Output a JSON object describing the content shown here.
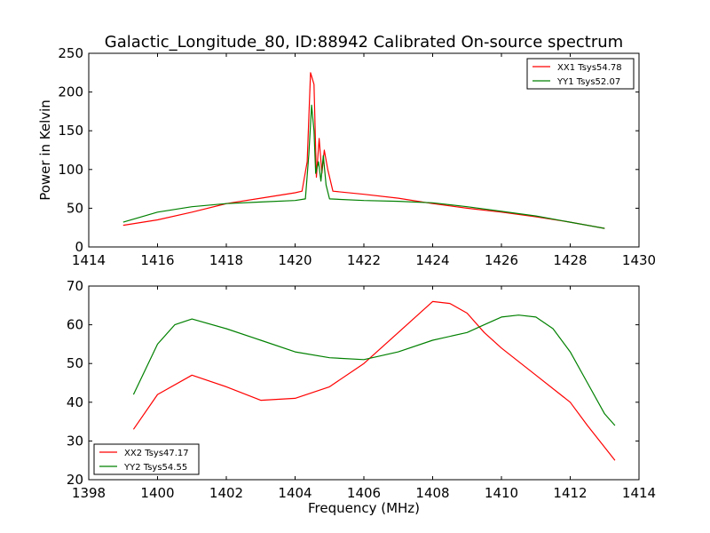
{
  "title": "Galactic_Longitude_80, ID:88942 Calibrated On-source spectrum",
  "colors": {
    "red": "#ff0000",
    "green": "#008000"
  },
  "chart_data": [
    {
      "type": "line",
      "ylabel": "Power in Kelvin",
      "xlabel": "",
      "xlim": [
        1414,
        1430
      ],
      "ylim": [
        0,
        250
      ],
      "xticks": [
        1414,
        1416,
        1418,
        1420,
        1422,
        1424,
        1426,
        1428,
        1430
      ],
      "yticks": [
        0,
        50,
        100,
        150,
        200,
        250
      ],
      "legend": "top-right",
      "series": [
        {
          "name": "XX1 Tsys54.78",
          "color": "#ff0000",
          "points": [
            [
              1415,
              28
            ],
            [
              1416,
              35
            ],
            [
              1417,
              45
            ],
            [
              1418,
              56
            ],
            [
              1419,
              63
            ],
            [
              1420,
              70
            ],
            [
              1420.2,
              72
            ],
            [
              1420.35,
              110
            ],
            [
              1420.45,
              225
            ],
            [
              1420.55,
              210
            ],
            [
              1420.62,
              90
            ],
            [
              1420.7,
              140
            ],
            [
              1420.78,
              95
            ],
            [
              1420.85,
              125
            ],
            [
              1420.95,
              100
            ],
            [
              1421.1,
              72
            ],
            [
              1422,
              68
            ],
            [
              1423,
              63
            ],
            [
              1424,
              56
            ],
            [
              1425,
              50
            ],
            [
              1426,
              45
            ],
            [
              1427,
              39
            ],
            [
              1428,
              32
            ],
            [
              1429,
              24
            ]
          ]
        },
        {
          "name": "YY1 Tsys52.07",
          "color": "#008000",
          "points": [
            [
              1415,
              32
            ],
            [
              1416,
              45
            ],
            [
              1417,
              52
            ],
            [
              1418,
              56
            ],
            [
              1419,
              58
            ],
            [
              1420,
              60
            ],
            [
              1420.3,
              62
            ],
            [
              1420.4,
              120
            ],
            [
              1420.48,
              183
            ],
            [
              1420.55,
              150
            ],
            [
              1420.6,
              95
            ],
            [
              1420.68,
              110
            ],
            [
              1420.75,
              85
            ],
            [
              1420.82,
              118
            ],
            [
              1420.9,
              80
            ],
            [
              1421,
              62
            ],
            [
              1422,
              60
            ],
            [
              1423,
              59
            ],
            [
              1424,
              57
            ],
            [
              1425,
              52
            ],
            [
              1426,
              46
            ],
            [
              1427,
              40
            ],
            [
              1428,
              32
            ],
            [
              1429,
              24
            ]
          ]
        }
      ]
    },
    {
      "type": "line",
      "ylabel": "",
      "xlabel": "Frequency (MHz)",
      "xlim": [
        1398,
        1414
      ],
      "ylim": [
        20,
        70
      ],
      "xticks": [
        1398,
        1400,
        1402,
        1404,
        1406,
        1408,
        1410,
        1412,
        1414
      ],
      "yticks": [
        20,
        30,
        40,
        50,
        60,
        70
      ],
      "legend": "bottom-left",
      "series": [
        {
          "name": "XX2 Tsys47.17",
          "color": "#ff0000",
          "points": [
            [
              1399.3,
              33
            ],
            [
              1400,
              42
            ],
            [
              1401,
              47
            ],
            [
              1402,
              44
            ],
            [
              1403,
              40.5
            ],
            [
              1404,
              41
            ],
            [
              1405,
              44
            ],
            [
              1406,
              50
            ],
            [
              1407,
              58
            ],
            [
              1408,
              66
            ],
            [
              1408.5,
              65.5
            ],
            [
              1409,
              63
            ],
            [
              1409.5,
              58
            ],
            [
              1410,
              54
            ],
            [
              1411,
              47
            ],
            [
              1412,
              40
            ],
            [
              1412.5,
              34
            ],
            [
              1413.3,
              25
            ]
          ]
        },
        {
          "name": "YY2 Tsys54.55",
          "color": "#008000",
          "points": [
            [
              1399.3,
              42
            ],
            [
              1400,
              55
            ],
            [
              1400.5,
              60
            ],
            [
              1401,
              61.5
            ],
            [
              1402,
              59
            ],
            [
              1403,
              56
            ],
            [
              1404,
              53
            ],
            [
              1405,
              51.5
            ],
            [
              1406,
              51
            ],
            [
              1407,
              53
            ],
            [
              1408,
              56
            ],
            [
              1409,
              58
            ],
            [
              1409.5,
              60
            ],
            [
              1410,
              62
            ],
            [
              1410.5,
              62.5
            ],
            [
              1411,
              62
            ],
            [
              1411.5,
              59
            ],
            [
              1412,
              53
            ],
            [
              1412.5,
              45
            ],
            [
              1413,
              37
            ],
            [
              1413.3,
              34
            ]
          ]
        }
      ]
    }
  ]
}
